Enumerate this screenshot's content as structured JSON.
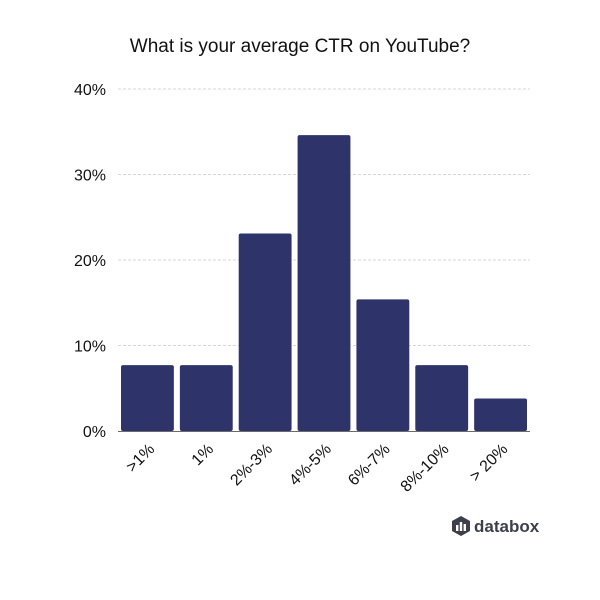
{
  "chart_data": {
    "type": "bar",
    "title": "What is your average CTR on YouTube?",
    "xlabel": "",
    "ylabel": "",
    "categories": [
      ">1%",
      "1%",
      "2%-3%",
      "4%-5%",
      "6%-7%",
      "8%-10%",
      "> 20%"
    ],
    "values": [
      7.7,
      7.7,
      23.1,
      34.6,
      15.4,
      7.7,
      3.8
    ],
    "ylim": [
      0,
      40
    ],
    "y_ticks": [
      0,
      10,
      20,
      30,
      40
    ],
    "y_tick_labels": [
      "0%",
      "10%",
      "20%",
      "30%",
      "40%"
    ],
    "grid": true,
    "legend": "none",
    "bar_color": "#2e3469"
  },
  "branding": {
    "name": "databox",
    "icon": "databox-logo-icon",
    "color": "#3d3f4b"
  }
}
